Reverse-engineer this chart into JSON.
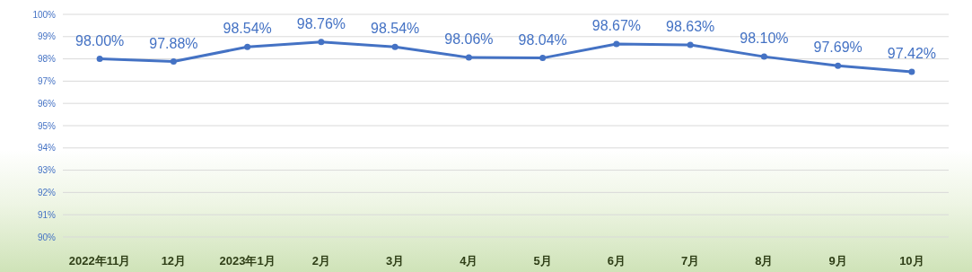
{
  "chart_data": {
    "type": "line",
    "categories": [
      "2022年11月",
      "12月",
      "2023年1月",
      "2月",
      "3月",
      "4月",
      "5月",
      "6月",
      "7月",
      "8月",
      "9月",
      "10月"
    ],
    "series": [
      {
        "color": "#4472c4",
        "values": [
          98.0,
          97.88,
          98.54,
          98.76,
          98.54,
          98.06,
          98.04,
          98.67,
          98.63,
          98.1,
          97.69,
          97.42
        ],
        "value_labels": [
          "98.00%",
          "97.88%",
          "98.54%",
          "98.76%",
          "98.54%",
          "98.06%",
          "98.04%",
          "98.67%",
          "98.63%",
          "98.10%",
          "97.69%",
          "97.42%"
        ]
      }
    ],
    "ylim": [
      90,
      100
    ],
    "yticks": [
      {
        "value": 90,
        "label": "90%"
      },
      {
        "value": 91,
        "label": "91%"
      },
      {
        "value": 92,
        "label": "92%"
      },
      {
        "value": 93,
        "label": "93%"
      },
      {
        "value": 94,
        "label": "94%"
      },
      {
        "value": 95,
        "label": "95%"
      },
      {
        "value": 96,
        "label": "96%"
      },
      {
        "value": 97,
        "label": "97%"
      },
      {
        "value": 98,
        "label": "98%"
      },
      {
        "value": 99,
        "label": "99%"
      },
      {
        "value": 100,
        "label": "100%"
      }
    ],
    "grid": "y",
    "marker": "circle",
    "line_style": "solid"
  }
}
